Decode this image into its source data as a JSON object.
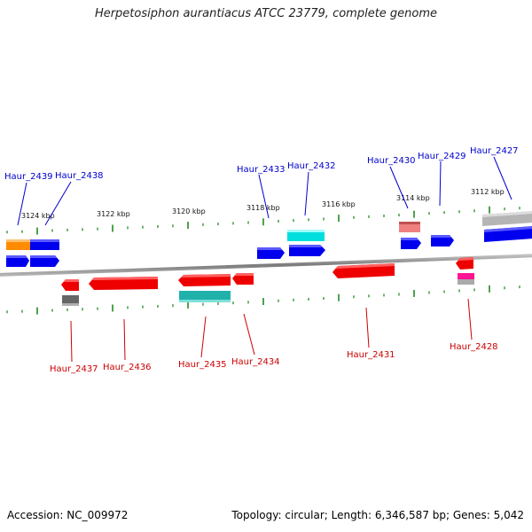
{
  "title": "Herpetosiphon aurantiacus ATCC 23779, complete genome",
  "footer": {
    "accession": "Accession: NC_009972",
    "summary": "Topology: circular; Length: 6,346,587 bp; Genes: 5,042"
  },
  "colors": {
    "backbone": "#8a8a8a",
    "tick": "#228b22",
    "forward_label": "#0000cc",
    "reverse_label": "#cc0000",
    "blue": "#0000ee",
    "red": "#ee0000",
    "cyan": "#00d8d8",
    "teal": "#20b2aa",
    "orange": "#ff8c00",
    "salmon": "#f08080",
    "gray": "#a9a9a9",
    "darkgray": "#666666",
    "pink": "#ff1493"
  },
  "kbp_labels": [
    "3124 kbp",
    "3122 kbp",
    "3120 kbp",
    "3118 kbp",
    "3116 kbp",
    "3114 kbp",
    "3112 kbp"
  ],
  "forward_genes": [
    "Haur_2439",
    "Haur_2438",
    "Haur_2433",
    "Haur_2432",
    "Haur_2430",
    "Haur_2429",
    "Haur_2427"
  ],
  "reverse_genes": [
    "Haur_2437",
    "Haur_2436",
    "Haur_2435",
    "Haur_2434",
    "Haur_2431",
    "Haur_2428"
  ]
}
